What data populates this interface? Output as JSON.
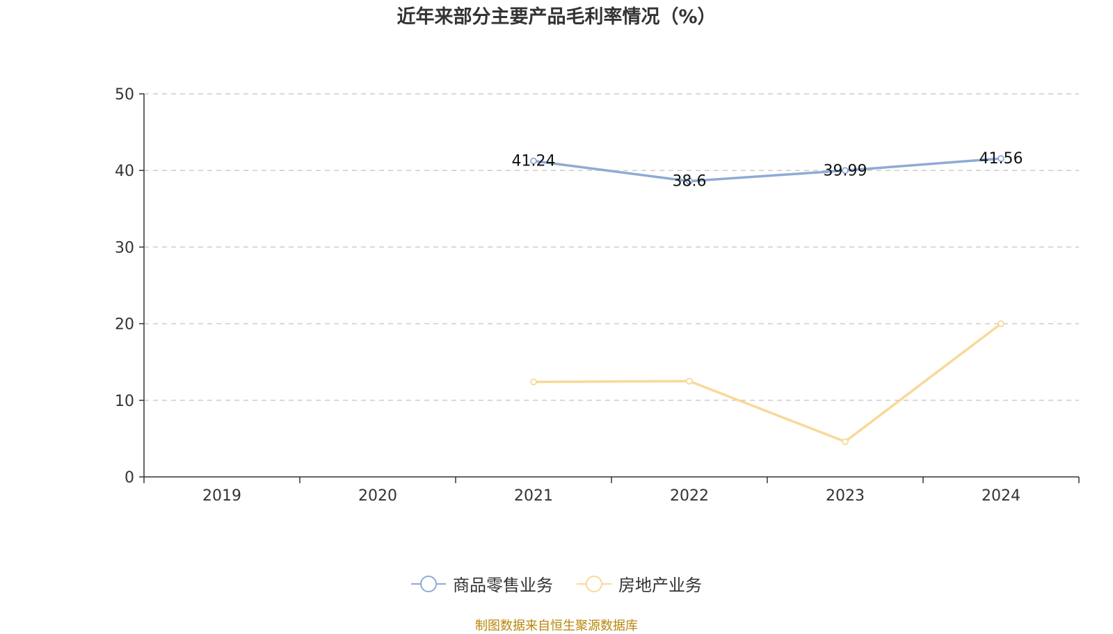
{
  "title": "近年来部分主要产品毛利率情况（%）",
  "source": "制图数据来自恒生聚源数据库",
  "chart_data": {
    "type": "line",
    "title": "近年来部分主要产品毛利率情况（%）",
    "categories": [
      "2019",
      "2020",
      "2021",
      "2022",
      "2023",
      "2024"
    ],
    "ylim": [
      0,
      50
    ],
    "yticks": [
      0,
      10,
      20,
      30,
      40,
      50
    ],
    "grid": true,
    "legend_position": "bottom-center",
    "series": [
      {
        "name": "商品零售业务",
        "color": "#8eaad6",
        "values": [
          null,
          null,
          41.24,
          38.6,
          39.99,
          41.56
        ],
        "show_labels": true
      },
      {
        "name": "房地产业务",
        "color": "#f9d898",
        "values": [
          null,
          null,
          12.4,
          12.5,
          4.6,
          20.0
        ],
        "show_labels": false
      }
    ]
  }
}
